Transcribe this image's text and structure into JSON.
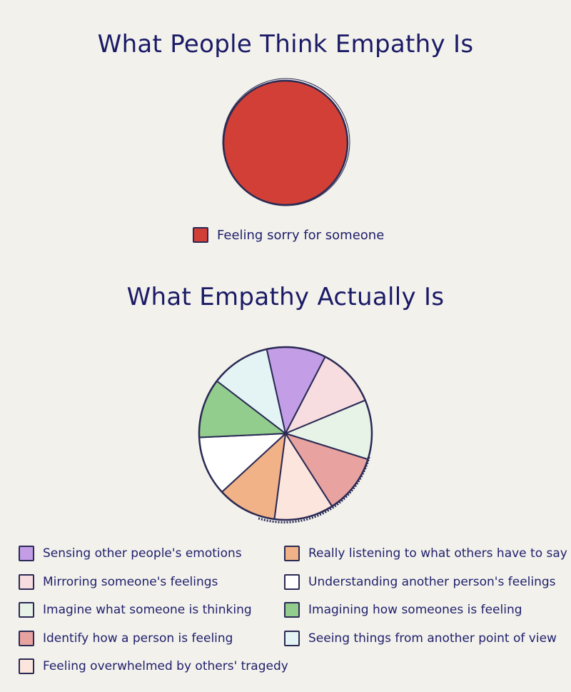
{
  "chart_data": [
    {
      "type": "pie",
      "title": "What People Think Empathy Is",
      "slices": [
        {
          "label": "Feeling sorry for someone",
          "value": 100,
          "color": "#d23f36"
        }
      ]
    },
    {
      "type": "pie",
      "title": "What Empathy Actually Is",
      "slices": [
        {
          "label": "Sensing other people's emotions",
          "value": 10,
          "color": "#c39ee6"
        },
        {
          "label": "Mirroring someone's feelings",
          "value": 10,
          "color": "#f7dde0"
        },
        {
          "label": "Imagine what someone is thinking",
          "value": 10,
          "color": "#e8f3e7"
        },
        {
          "label": "Identify how a person is feeling",
          "value": 10,
          "color": "#e8a3a0"
        },
        {
          "label": "Feeling overwhelmed by others' tragedy",
          "value": 10,
          "color": "#fbe5dc"
        },
        {
          "label": "Really listening to what others have to say",
          "value": 10,
          "color": "#f0b286"
        },
        {
          "label": "Understanding another person's feelings",
          "value": 10,
          "color": "#ffffff"
        },
        {
          "label": "Imagining how someones is feeling",
          "value": 10,
          "color": "#93cd8d"
        },
        {
          "label": "Seeing things from another point of view",
          "value": 10,
          "color": "#e4f4f4"
        }
      ],
      "legend": {
        "left": [
          "Sensing other people's emotions",
          "Mirroring someone's feelings",
          "Imagine what someone is thinking",
          "Identify how a person is feeling",
          "Feeling overwhelmed by others' tragedy"
        ],
        "right": [
          "Really listening to what others have to say",
          "Understanding another person's feelings",
          "Imagining how someones is feeling",
          "Seeing things from another point of view"
        ]
      }
    }
  ]
}
